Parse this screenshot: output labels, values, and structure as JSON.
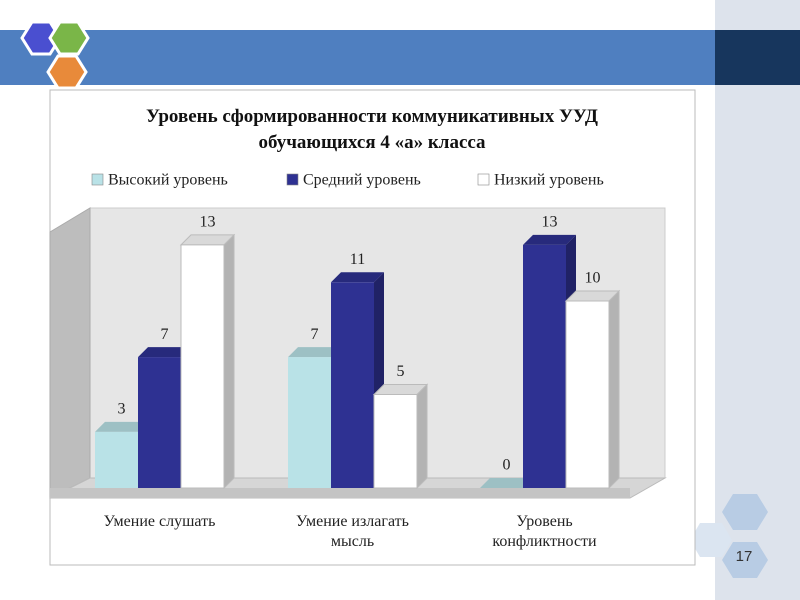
{
  "chart_data": {
    "type": "bar3d",
    "title": "Уровень сформированности коммуникативных УУД обучающихся 4 «а» класса",
    "categories": [
      "Умение слушать",
      "Умение излагать мысль",
      "Уровень конфликтности"
    ],
    "series": [
      {
        "name": "Высокий уровень",
        "color": "#b9e2e7",
        "values": [
          3,
          7,
          0
        ]
      },
      {
        "name": "Средний уровень",
        "color": "#2e3192",
        "values": [
          7,
          11,
          13
        ]
      },
      {
        "name": "Низкий уровень",
        "color": "#ffffff",
        "values": [
          13,
          5,
          10
        ]
      }
    ],
    "legend": "top"
  },
  "slide": {
    "number": "17"
  }
}
